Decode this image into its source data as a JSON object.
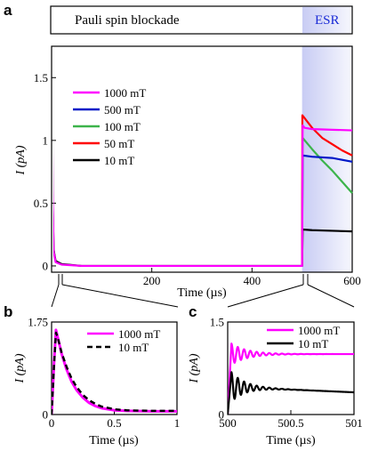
{
  "colors": {
    "1000 mT": "#ff00ff",
    "500 mT": "#0018c8",
    "100 mT": "#3cb44b",
    "50 mT": "#ff0000",
    "10 mT": "#000000",
    "esr_shade": "#c8ccf4"
  },
  "panels": {
    "a": "a",
    "b": "b",
    "c": "c"
  },
  "banner": {
    "left_label": "Pauli spin blockade",
    "right_label": "ESR"
  },
  "chart_data": [
    {
      "panel": "a",
      "type": "line",
      "xlabel": "Time (µs)",
      "ylabel": "I (pA)",
      "xlim": [
        0,
        600
      ],
      "ylim": [
        -0.05,
        1.75
      ],
      "xticks": [
        {
          "value": 200,
          "label": "200"
        },
        {
          "value": 400,
          "label": "400"
        },
        {
          "value": 600,
          "label": "600"
        }
      ],
      "yticks": [
        {
          "value": 0,
          "label": "0"
        },
        {
          "value": 0.5,
          "label": "0.5"
        },
        {
          "value": 1,
          "label": "1"
        },
        {
          "value": 1.5,
          "label": "1.5"
        }
      ],
      "shaded_region": {
        "x": [
          500,
          600
        ],
        "label": "ESR"
      },
      "legend_position": "upper-left",
      "series": [
        {
          "name": "1000 mT",
          "x": [
            0,
            1,
            2,
            4,
            8,
            20,
            60,
            499.9,
            500,
            501,
            505,
            520,
            560,
            600
          ],
          "y": [
            0,
            1.55,
            0.6,
            0.12,
            0.03,
            0.01,
            0.0,
            0.0,
            0.0,
            1.12,
            1.1,
            1.09,
            1.085,
            1.08
          ]
        },
        {
          "name": "500 mT",
          "x": [
            500,
            501,
            520,
            560,
            600
          ],
          "y": [
            0.0,
            0.88,
            0.87,
            0.86,
            0.83
          ]
        },
        {
          "name": "100 mT",
          "x": [
            500,
            501,
            520,
            540,
            560,
            580,
            600
          ],
          "y": [
            0.0,
            1.02,
            0.93,
            0.84,
            0.76,
            0.67,
            0.58
          ]
        },
        {
          "name": "50 mT",
          "x": [
            500,
            500.5,
            520,
            540,
            560,
            580,
            600
          ],
          "y": [
            0.0,
            1.2,
            1.1,
            1.02,
            0.97,
            0.92,
            0.88
          ]
        },
        {
          "name": "10 mT",
          "x": [
            0,
            1,
            2,
            4,
            8,
            20,
            60,
            499.9,
            500,
            501,
            520,
            560,
            600
          ],
          "y": [
            0,
            1.5,
            0.6,
            0.13,
            0.04,
            0.015,
            0.0,
            0.0,
            0.0,
            0.29,
            0.285,
            0.28,
            0.275
          ]
        }
      ]
    },
    {
      "panel": "b",
      "type": "line",
      "xlabel": "Time (µs)",
      "ylabel": "I (pA)",
      "xlim": [
        0,
        1
      ],
      "ylim": [
        0,
        1.75
      ],
      "xticks": [
        {
          "value": 0,
          "label": "0"
        },
        {
          "value": 0.5,
          "label": "0.5"
        },
        {
          "value": 1,
          "label": "1"
        }
      ],
      "yticks": [
        {
          "value": 0,
          "label": "0"
        },
        {
          "value": 1.75,
          "label": "1.75"
        }
      ],
      "legend_position": "upper-right",
      "series": [
        {
          "name": "1000 mT",
          "style": "solid",
          "x": [
            0,
            0.02,
            0.035,
            0.05,
            0.08,
            0.12,
            0.16,
            0.2,
            0.25,
            0.3,
            0.35,
            0.4,
            0.5,
            0.6,
            0.8,
            1.0
          ],
          "y": [
            0.0,
            1.0,
            1.6,
            1.45,
            1.15,
            0.85,
            0.62,
            0.46,
            0.32,
            0.22,
            0.16,
            0.12,
            0.08,
            0.07,
            0.06,
            0.06
          ]
        },
        {
          "name": "10 mT",
          "style": "dashed",
          "x": [
            0,
            0.02,
            0.035,
            0.05,
            0.08,
            0.12,
            0.16,
            0.2,
            0.25,
            0.3,
            0.35,
            0.4,
            0.5,
            0.6,
            0.8,
            1.0
          ],
          "y": [
            0.0,
            0.95,
            1.55,
            1.45,
            1.17,
            0.9,
            0.68,
            0.52,
            0.37,
            0.27,
            0.2,
            0.15,
            0.1,
            0.08,
            0.07,
            0.07
          ]
        }
      ]
    },
    {
      "panel": "c",
      "type": "line",
      "xlabel": "Time (µs)",
      "ylabel": "I (pA)",
      "xlim": [
        500,
        501
      ],
      "ylim": [
        0,
        1.5
      ],
      "xticks": [
        {
          "value": 500,
          "label": "500"
        },
        {
          "value": 500.5,
          "label": "500.5"
        },
        {
          "value": 501,
          "label": "501"
        }
      ],
      "yticks": [
        {
          "value": 0,
          "label": "0"
        },
        {
          "value": 1.5,
          "label": "1.5"
        }
      ],
      "legend_position": "upper-right",
      "series": [
        {
          "name": "1000 mT",
          "oscillation": {
            "start": 500.0,
            "rise_end": 500.03,
            "offset": 0.98,
            "amplitude": 0.17,
            "period": 0.05,
            "decay": 0.13
          }
        },
        {
          "name": "10 mT",
          "oscillation": {
            "start": 500.0,
            "rise_end": 500.03,
            "offset": 0.45,
            "amplitude": 0.24,
            "period": 0.05,
            "decay": 0.11,
            "drift_to": 0.36
          }
        }
      ]
    }
  ]
}
